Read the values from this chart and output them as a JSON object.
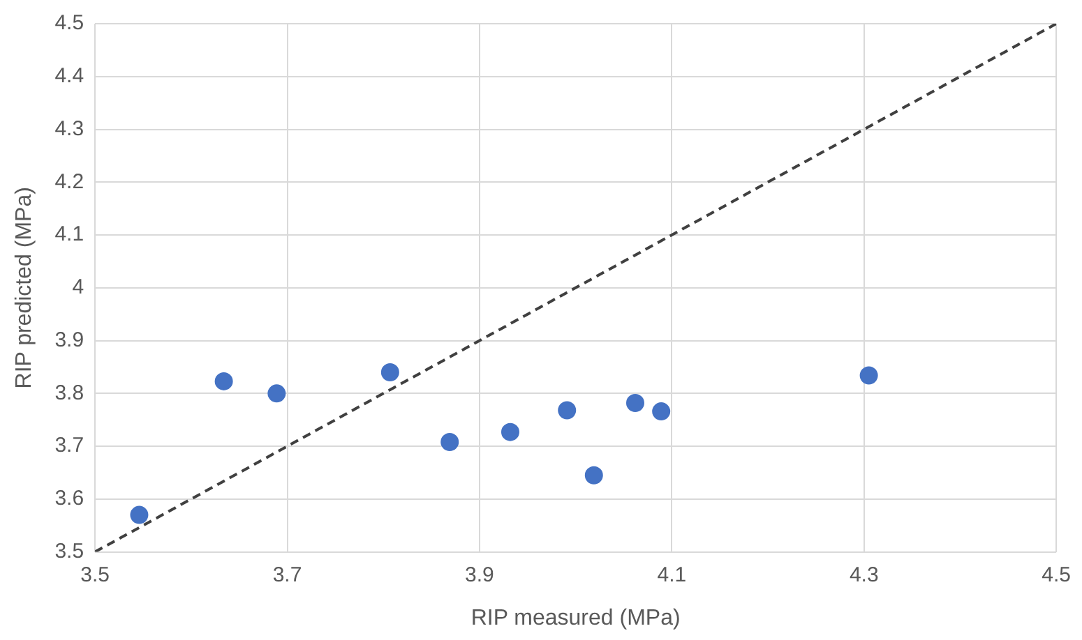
{
  "chart_data": {
    "type": "scatter",
    "xlabel": "RIP measured (MPa)",
    "ylabel": "RIP predicted (MPa)",
    "series": [
      {
        "color": "#4472c4",
        "x": [
          3.546,
          3.634,
          3.689,
          3.807,
          3.869,
          3.932,
          3.991,
          4.019,
          4.062,
          4.089,
          4.305
        ],
        "values": [
          3.57,
          3.823,
          3.8,
          3.84,
          3.708,
          3.727,
          3.768,
          3.645,
          3.782,
          3.766,
          3.834
        ]
      },
      {
        "type": "line",
        "color": "#404040",
        "line_style": "dashed",
        "marker": "none",
        "x": [
          3.5,
          4.5
        ],
        "values": [
          3.5,
          4.5
        ]
      }
    ],
    "marker": "circle",
    "xlim": [
      3.5,
      4.5
    ],
    "xticks": [
      3.5,
      3.7,
      3.9,
      4.1,
      4.3,
      4.5
    ],
    "ylim": [
      3.5,
      4.5
    ],
    "yticks": [
      3.5,
      3.6,
      3.7,
      3.8,
      3.9,
      4,
      4.1,
      4.2,
      4.3,
      4.4,
      4.5
    ],
    "grid": true,
    "legend": false
  }
}
